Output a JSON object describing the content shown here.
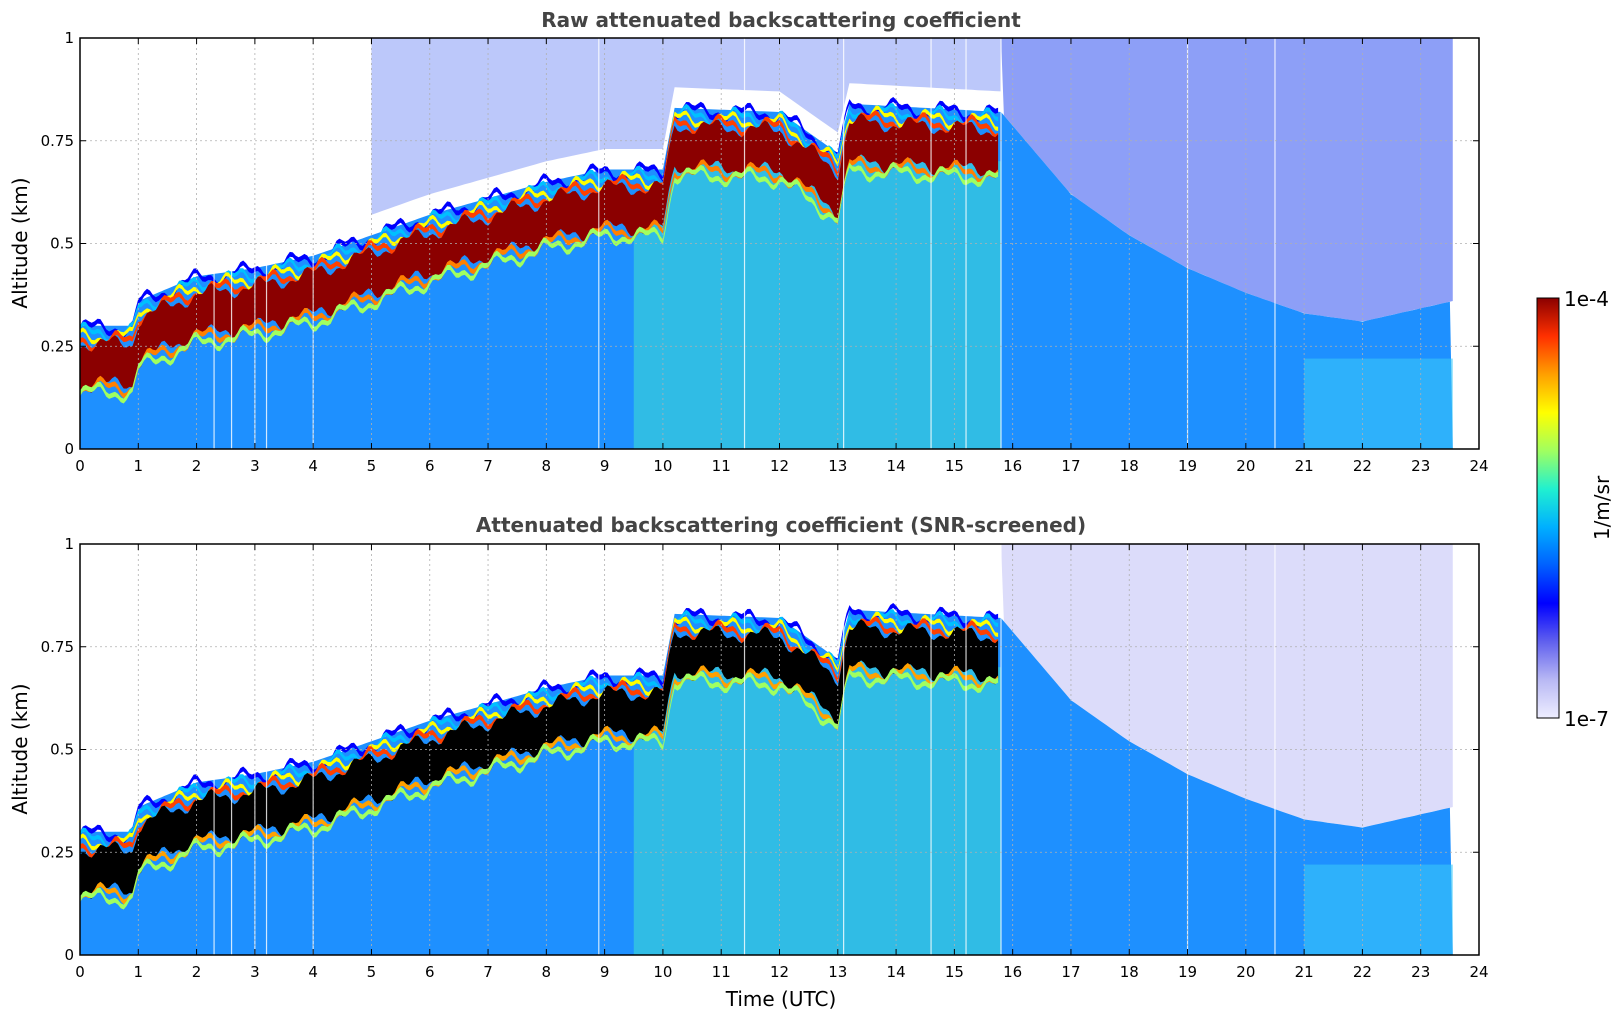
{
  "chart_data": [
    {
      "type": "heatmap",
      "title": "Raw attenuated backscattering coefficient",
      "xlabel": "",
      "ylabel": "Altitude (km)",
      "xlim": [
        0,
        24
      ],
      "ylim": [
        0,
        1
      ],
      "xticks": [
        0,
        1,
        2,
        3,
        4,
        5,
        6,
        7,
        8,
        9,
        10,
        11,
        12,
        13,
        14,
        15,
        16,
        17,
        18,
        19,
        20,
        21,
        22,
        23,
        24
      ],
      "xtick_labels": [
        "0",
        "1",
        "2",
        "3",
        "4",
        "5",
        "6",
        "7",
        "8",
        "9",
        "10",
        "11",
        "12",
        "13",
        "14",
        "15",
        "16",
        "17",
        "18",
        "19",
        "20",
        "21",
        "22",
        "23",
        "24"
      ],
      "yticks": [
        0,
        0.25,
        0.5,
        0.75,
        1
      ],
      "ytick_labels": [
        "0",
        "0.25",
        "0.5",
        "0.75",
        "1"
      ],
      "grid": true,
      "data_end_time": 23.55,
      "layer_top_km": [
        {
          "t": 0,
          "z": 0.3
        },
        {
          "t": 0.9,
          "z": 0.3
        },
        {
          "t": 1.0,
          "z": 0.36
        },
        {
          "t": 2,
          "z": 0.42
        },
        {
          "t": 3,
          "z": 0.44
        },
        {
          "t": 4,
          "z": 0.47
        },
        {
          "t": 5,
          "z": 0.52
        },
        {
          "t": 6,
          "z": 0.57
        },
        {
          "t": 7,
          "z": 0.61
        },
        {
          "t": 8,
          "z": 0.65
        },
        {
          "t": 9,
          "z": 0.68
        },
        {
          "t": 10,
          "z": 0.68
        },
        {
          "t": 10.2,
          "z": 0.83
        },
        {
          "t": 12,
          "z": 0.82
        },
        {
          "t": 13,
          "z": 0.72
        },
        {
          "t": 13.2,
          "z": 0.84
        },
        {
          "t": 15.8,
          "z": 0.82
        }
      ],
      "noise_floor_top_km": [
        {
          "t": 15.8,
          "z": 0.82
        },
        {
          "t": 17,
          "z": 0.62
        },
        {
          "t": 18,
          "z": 0.52
        },
        {
          "t": 19,
          "z": 0.44
        },
        {
          "t": 20,
          "z": 0.38
        },
        {
          "t": 21,
          "z": 0.33
        },
        {
          "t": 22,
          "z": 0.31
        },
        {
          "t": 23.55,
          "z": 0.36
        }
      ]
    },
    {
      "type": "heatmap",
      "title": "Attenuated backscattering coefficient (SNR-screened)",
      "xlabel": "Time (UTC)",
      "ylabel": "Altitude (km)",
      "xlim": [
        0,
        24
      ],
      "ylim": [
        0,
        1
      ],
      "xticks": [
        0,
        1,
        2,
        3,
        4,
        5,
        6,
        7,
        8,
        9,
        10,
        11,
        12,
        13,
        14,
        15,
        16,
        17,
        18,
        19,
        20,
        21,
        22,
        23,
        24
      ],
      "xtick_labels": [
        "0",
        "1",
        "2",
        "3",
        "4",
        "5",
        "6",
        "7",
        "8",
        "9",
        "10",
        "11",
        "12",
        "13",
        "14",
        "15",
        "16",
        "17",
        "18",
        "19",
        "20",
        "21",
        "22",
        "23",
        "24"
      ],
      "yticks": [
        0,
        0.25,
        0.5,
        0.75,
        1
      ],
      "ytick_labels": [
        "0",
        "0.25",
        "0.5",
        "0.75",
        "1"
      ],
      "grid": true,
      "data_end_time": 23.55,
      "saturated_color": "#000000"
    }
  ],
  "colorbar": {
    "label": "1/m/sr",
    "max_label": "1e-4",
    "min_label": "1e-7",
    "scale": "log",
    "range": [
      1e-07,
      0.0001
    ],
    "colormap": [
      "#eeeeff",
      "#b8b8f4",
      "#6060ee",
      "#0000ff",
      "#0060ff",
      "#00b0ff",
      "#20f0d0",
      "#a0ff60",
      "#ffff00",
      "#ffa000",
      "#ff3000",
      "#8b0000"
    ]
  }
}
